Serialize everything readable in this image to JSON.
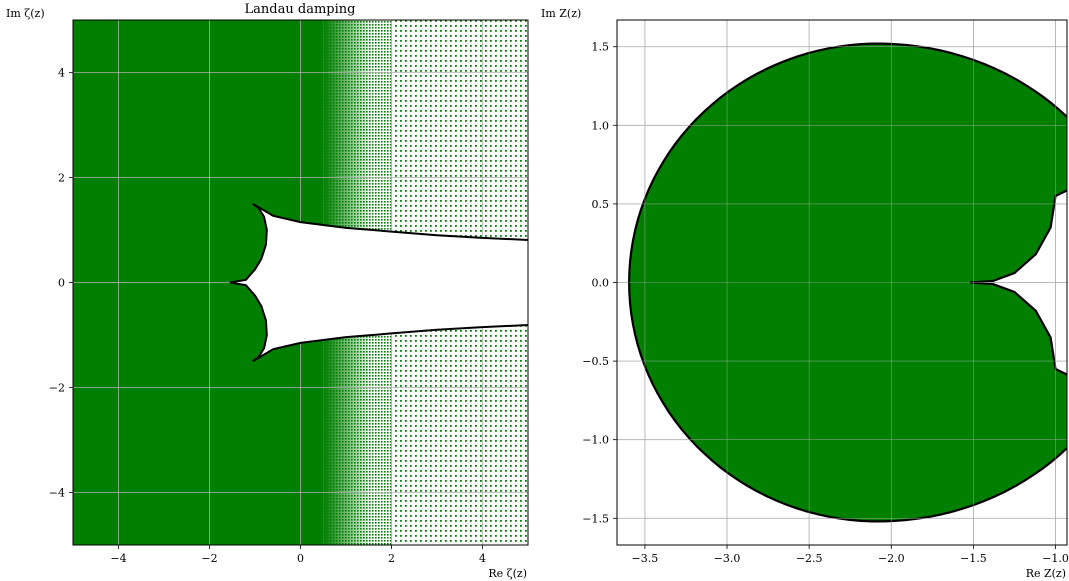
{
  "chart_data": [
    {
      "type": "scatter",
      "title": "Landau damping",
      "xlabel": "Re ζ(z)",
      "ylabel": "Im ζ(z)",
      "xlim": [
        -5,
        5
      ],
      "ylim": [
        -5,
        5
      ],
      "xticks": [
        -4,
        -2,
        0,
        2,
        4
      ],
      "yticks": [
        -4,
        -2,
        0,
        2,
        4
      ],
      "xtick_labels": [
        "−4",
        "−2",
        "0",
        "2",
        "4"
      ],
      "ytick_labels": [
        "−4",
        "−2",
        "0",
        "2",
        "4"
      ],
      "grid": true,
      "color": "#007f00",
      "description_series": [
        {
          "name": "",
          "boundary_upper": {
            "x": [
              -1.05,
              -0.85,
              -0.75,
              -0.85,
              -1.05,
              -0.5,
              0,
              1,
              2,
              3,
              4,
              5
            ],
            "y": [
              1.5,
              1.35,
              1.0,
              0.3,
              0.0,
              1.1,
              1.15,
              1.05,
              0.98,
              0.9,
              0.86,
              0.82
            ]
          }
        }
      ]
    },
    {
      "type": "area",
      "title": "",
      "xlabel": "Re Z(z)",
      "ylabel": "Im Z(z)",
      "xlim": [
        -3.67,
        -0.93
      ],
      "ylim": [
        -1.67,
        1.67
      ],
      "xticks": [
        -3.5,
        -3.0,
        -2.5,
        -2.0,
        -1.5,
        -1.0
      ],
      "yticks": [
        -1.5,
        -1.0,
        -0.5,
        0.0,
        0.5,
        1.0,
        1.5
      ],
      "xtick_labels": [
        "−3.5",
        "−3.0",
        "−2.5",
        "−2.0",
        "−1.5",
        "−1.0"
      ],
      "ytick_labels": [
        "−1.5",
        "−1.0",
        "−0.5",
        "0.0",
        "0.5",
        "1.0",
        "1.5"
      ],
      "grid": true,
      "color": "#007f00"
    }
  ]
}
